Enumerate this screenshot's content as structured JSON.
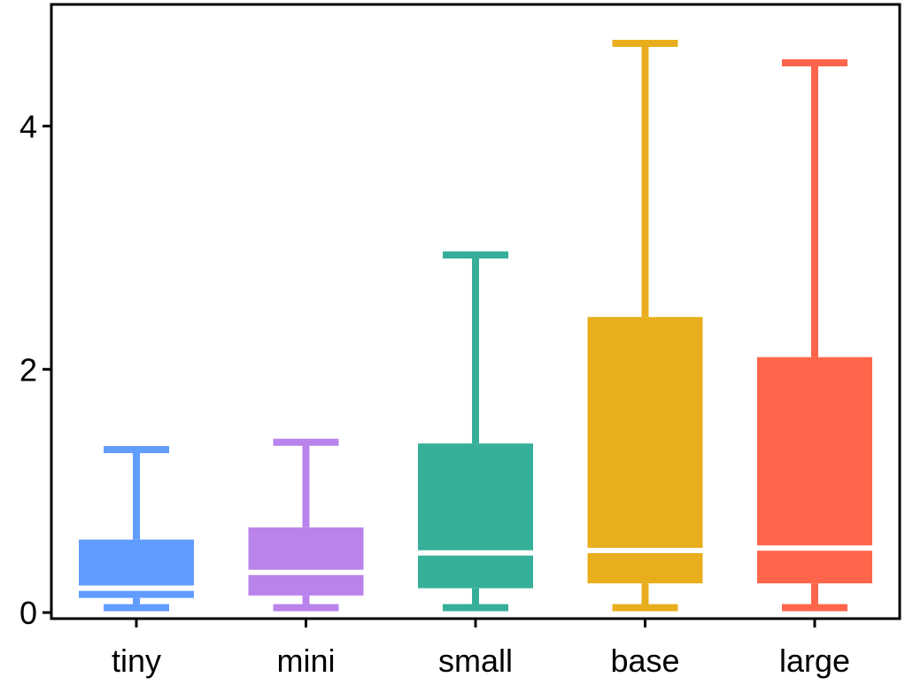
{
  "chart_data": {
    "type": "box",
    "title": "",
    "xlabel": "",
    "ylabel": "",
    "ylim": [
      -0.05,
      5.0
    ],
    "yticks": [
      {
        "value": 0,
        "label": "0"
      },
      {
        "value": 2,
        "label": "2"
      },
      {
        "value": 4,
        "label": "4"
      }
    ],
    "grid": false,
    "categories": [
      "tiny",
      "mini",
      "small",
      "base",
      "large"
    ],
    "boxes": [
      {
        "category": "tiny",
        "color": "#619CFF",
        "whislo": 0.04,
        "q1": 0.12,
        "med": 0.2,
        "q3": 0.6,
        "whishi": 1.34
      },
      {
        "category": "mini",
        "color": "#B983EB",
        "whislo": 0.04,
        "q1": 0.14,
        "med": 0.33,
        "q3": 0.7,
        "whishi": 1.4
      },
      {
        "category": "small",
        "color": "#36AF99",
        "whislo": 0.04,
        "q1": 0.2,
        "med": 0.49,
        "q3": 1.39,
        "whishi": 2.94
      },
      {
        "category": "base",
        "color": "#E8AE1D",
        "whislo": 0.04,
        "q1": 0.24,
        "med": 0.51,
        "q3": 2.43,
        "whishi": 4.68
      },
      {
        "category": "large",
        "color": "#FF654A",
        "whislo": 0.04,
        "q1": 0.24,
        "med": 0.53,
        "q3": 2.1,
        "whishi": 4.52
      }
    ]
  }
}
